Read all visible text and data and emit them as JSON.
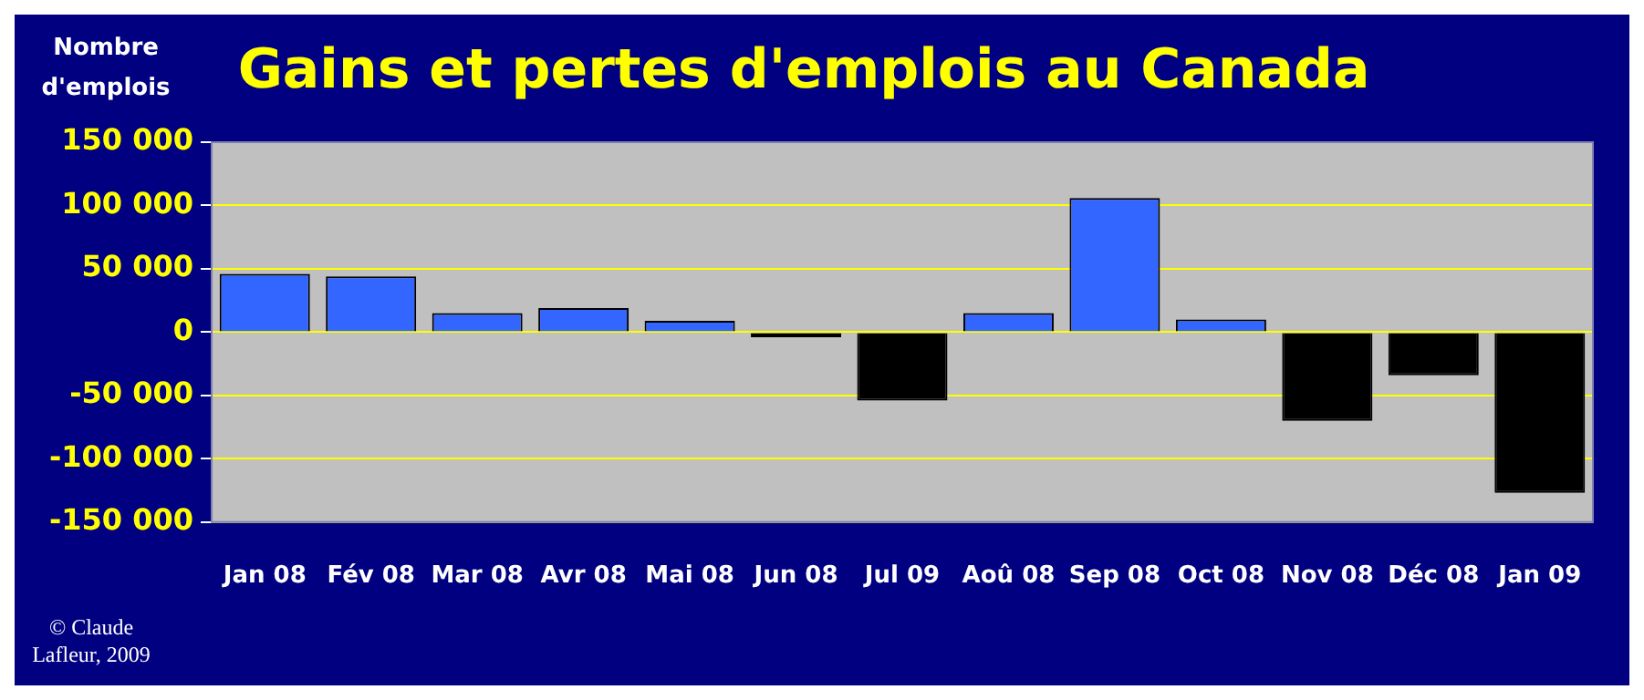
{
  "chart_data": {
    "type": "bar",
    "title": "Gains et pertes d'emplois au Canada",
    "ylabel": "Nombre d'emplois",
    "annotations": [
      "© Claude Lafleur, 2009"
    ],
    "categories": [
      "Jan 08",
      "Fév 08",
      "Mar 08",
      "Avr 08",
      "Mai 08",
      "Jun 08",
      "Jul 09",
      "Aoû 08",
      "Sep 08",
      "Oct 08",
      "Nov 08",
      "Déc 08",
      "Jan 09"
    ],
    "values": [
      46000,
      44000,
      15000,
      19000,
      9000,
      -4000,
      -54000,
      15000,
      106000,
      10000,
      -70000,
      -34000,
      -127000
    ],
    "colors": [
      "#3366ff",
      "#3366ff",
      "#3366ff",
      "#3366ff",
      "#3366ff",
      "#000000",
      "#000000",
      "#3366ff",
      "#3366ff",
      "#3366ff",
      "#000000",
      "#000000",
      "#000000"
    ],
    "ylim": [
      -150000,
      150000
    ],
    "yticks": [
      {
        "value": -150000,
        "label": "-150 000"
      },
      {
        "value": -100000,
        "label": "-100 000"
      },
      {
        "value": -50000,
        "label": "-50 000"
      },
      {
        "value": 0,
        "label": "0"
      },
      {
        "value": 50000,
        "label": "50 000"
      },
      {
        "value": 100000,
        "label": "100 000"
      },
      {
        "value": 150000,
        "label": "150 000"
      }
    ],
    "grid": "y",
    "legend": false
  }
}
